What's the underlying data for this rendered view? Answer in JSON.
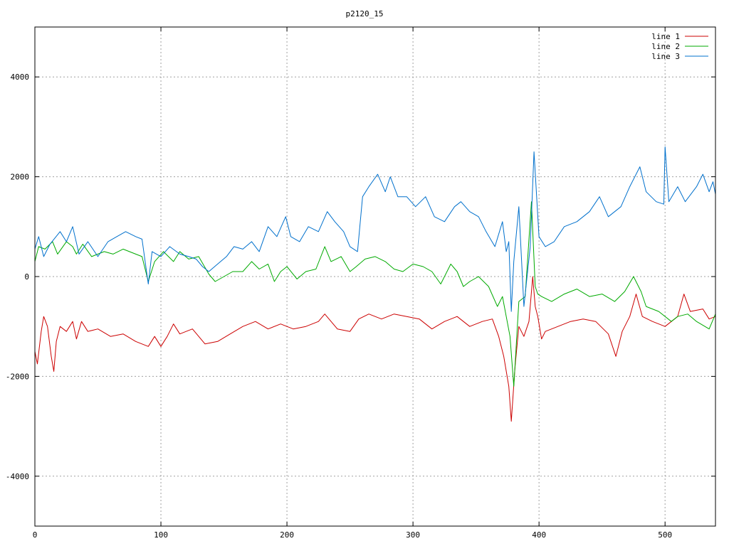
{
  "chart_data": {
    "type": "line",
    "title": "p2120_15",
    "xlabel": "",
    "ylabel": "",
    "xlim": [
      0,
      540
    ],
    "ylim": [
      -5000,
      5000
    ],
    "xticks": [
      0,
      100,
      200,
      300,
      400,
      500
    ],
    "yticks": [
      -4000,
      -2000,
      0,
      2000,
      4000
    ],
    "ytick_labels": [
      "-4000",
      "-2000",
      "0",
      "2000",
      "4000"
    ],
    "grid": true,
    "legend_position": "top-right",
    "series": [
      {
        "name": "line 1",
        "color": "#cc0000",
        "points": [
          [
            0,
            -1500
          ],
          [
            2,
            -1750
          ],
          [
            5,
            -1100
          ],
          [
            7,
            -800
          ],
          [
            10,
            -1000
          ],
          [
            13,
            -1600
          ],
          [
            15,
            -1900
          ],
          [
            17,
            -1300
          ],
          [
            20,
            -1000
          ],
          [
            25,
            -1100
          ],
          [
            30,
            -900
          ],
          [
            33,
            -1250
          ],
          [
            37,
            -900
          ],
          [
            42,
            -1100
          ],
          [
            50,
            -1050
          ],
          [
            60,
            -1200
          ],
          [
            70,
            -1150
          ],
          [
            80,
            -1300
          ],
          [
            90,
            -1400
          ],
          [
            95,
            -1200
          ],
          [
            100,
            -1400
          ],
          [
            105,
            -1200
          ],
          [
            110,
            -950
          ],
          [
            115,
            -1150
          ],
          [
            125,
            -1050
          ],
          [
            135,
            -1350
          ],
          [
            145,
            -1300
          ],
          [
            155,
            -1150
          ],
          [
            165,
            -1000
          ],
          [
            175,
            -900
          ],
          [
            185,
            -1050
          ],
          [
            195,
            -950
          ],
          [
            205,
            -1050
          ],
          [
            215,
            -1000
          ],
          [
            225,
            -900
          ],
          [
            230,
            -750
          ],
          [
            240,
            -1050
          ],
          [
            250,
            -1100
          ],
          [
            257,
            -850
          ],
          [
            265,
            -750
          ],
          [
            275,
            -850
          ],
          [
            285,
            -750
          ],
          [
            295,
            -800
          ],
          [
            305,
            -850
          ],
          [
            315,
            -1050
          ],
          [
            325,
            -900
          ],
          [
            335,
            -800
          ],
          [
            345,
            -1000
          ],
          [
            355,
            -900
          ],
          [
            363,
            -850
          ],
          [
            368,
            -1200
          ],
          [
            372,
            -1600
          ],
          [
            376,
            -2200
          ],
          [
            378,
            -2900
          ],
          [
            381,
            -1800
          ],
          [
            384,
            -1000
          ],
          [
            388,
            -1200
          ],
          [
            392,
            -900
          ],
          [
            395,
            0
          ],
          [
            397,
            -600
          ],
          [
            399,
            -800
          ],
          [
            402,
            -1250
          ],
          [
            405,
            -1100
          ],
          [
            415,
            -1000
          ],
          [
            425,
            -900
          ],
          [
            435,
            -850
          ],
          [
            445,
            -900
          ],
          [
            455,
            -1150
          ],
          [
            461,
            -1600
          ],
          [
            466,
            -1100
          ],
          [
            472,
            -800
          ],
          [
            477,
            -350
          ],
          [
            482,
            -800
          ],
          [
            490,
            -900
          ],
          [
            500,
            -1000
          ],
          [
            510,
            -800
          ],
          [
            515,
            -350
          ],
          [
            520,
            -700
          ],
          [
            530,
            -650
          ],
          [
            535,
            -850
          ],
          [
            540,
            -800
          ]
        ]
      },
      {
        "name": "line 2",
        "color": "#00aa00",
        "points": [
          [
            0,
            300
          ],
          [
            3,
            600
          ],
          [
            8,
            550
          ],
          [
            14,
            700
          ],
          [
            18,
            450
          ],
          [
            25,
            700
          ],
          [
            30,
            600
          ],
          [
            33,
            450
          ],
          [
            38,
            650
          ],
          [
            45,
            400
          ],
          [
            55,
            500
          ],
          [
            62,
            450
          ],
          [
            70,
            550
          ],
          [
            80,
            450
          ],
          [
            85,
            400
          ],
          [
            90,
            -100
          ],
          [
            95,
            300
          ],
          [
            102,
            500
          ],
          [
            110,
            300
          ],
          [
            115,
            500
          ],
          [
            122,
            350
          ],
          [
            130,
            400
          ],
          [
            138,
            50
          ],
          [
            143,
            -100
          ],
          [
            150,
            0
          ],
          [
            157,
            100
          ],
          [
            165,
            100
          ],
          [
            172,
            300
          ],
          [
            178,
            150
          ],
          [
            185,
            250
          ],
          [
            190,
            -100
          ],
          [
            195,
            100
          ],
          [
            200,
            200
          ],
          [
            208,
            -50
          ],
          [
            215,
            100
          ],
          [
            223,
            150
          ],
          [
            230,
            600
          ],
          [
            235,
            300
          ],
          [
            243,
            400
          ],
          [
            250,
            100
          ],
          [
            255,
            200
          ],
          [
            262,
            350
          ],
          [
            270,
            400
          ],
          [
            278,
            300
          ],
          [
            285,
            150
          ],
          [
            292,
            100
          ],
          [
            300,
            250
          ],
          [
            308,
            200
          ],
          [
            315,
            100
          ],
          [
            322,
            -150
          ],
          [
            330,
            250
          ],
          [
            335,
            100
          ],
          [
            340,
            -200
          ],
          [
            345,
            -100
          ],
          [
            352,
            0
          ],
          [
            360,
            -200
          ],
          [
            367,
            -600
          ],
          [
            371,
            -400
          ],
          [
            374,
            -800
          ],
          [
            377,
            -1200
          ],
          [
            380,
            -2200
          ],
          [
            384,
            -500
          ],
          [
            389,
            -400
          ],
          [
            394,
            1500
          ],
          [
            397,
            -200
          ],
          [
            399,
            -350
          ],
          [
            402,
            -400
          ],
          [
            410,
            -500
          ],
          [
            420,
            -350
          ],
          [
            430,
            -250
          ],
          [
            440,
            -400
          ],
          [
            450,
            -350
          ],
          [
            460,
            -500
          ],
          [
            468,
            -300
          ],
          [
            475,
            0
          ],
          [
            481,
            -300
          ],
          [
            485,
            -600
          ],
          [
            495,
            -700
          ],
          [
            505,
            -900
          ],
          [
            510,
            -800
          ],
          [
            518,
            -750
          ],
          [
            525,
            -900
          ],
          [
            535,
            -1050
          ],
          [
            540,
            -750
          ]
        ]
      },
      {
        "name": "line 3",
        "color": "#0070cc",
        "points": [
          [
            0,
            550
          ],
          [
            3,
            800
          ],
          [
            7,
            400
          ],
          [
            12,
            650
          ],
          [
            20,
            900
          ],
          [
            25,
            700
          ],
          [
            30,
            1000
          ],
          [
            35,
            450
          ],
          [
            42,
            700
          ],
          [
            50,
            400
          ],
          [
            58,
            700
          ],
          [
            65,
            800
          ],
          [
            72,
            900
          ],
          [
            80,
            800
          ],
          [
            85,
            750
          ],
          [
            90,
            -150
          ],
          [
            93,
            500
          ],
          [
            100,
            400
          ],
          [
            107,
            600
          ],
          [
            115,
            450
          ],
          [
            122,
            400
          ],
          [
            128,
            350
          ],
          [
            133,
            200
          ],
          [
            138,
            100
          ],
          [
            145,
            250
          ],
          [
            152,
            400
          ],
          [
            158,
            600
          ],
          [
            165,
            550
          ],
          [
            172,
            700
          ],
          [
            178,
            500
          ],
          [
            185,
            1000
          ],
          [
            192,
            800
          ],
          [
            199,
            1200
          ],
          [
            203,
            800
          ],
          [
            210,
            700
          ],
          [
            217,
            1000
          ],
          [
            225,
            900
          ],
          [
            232,
            1300
          ],
          [
            238,
            1100
          ],
          [
            245,
            900
          ],
          [
            250,
            600
          ],
          [
            256,
            500
          ],
          [
            260,
            1600
          ],
          [
            265,
            1800
          ],
          [
            272,
            2050
          ],
          [
            278,
            1700
          ],
          [
            282,
            2000
          ],
          [
            288,
            1600
          ],
          [
            295,
            1600
          ],
          [
            302,
            1400
          ],
          [
            310,
            1600
          ],
          [
            317,
            1200
          ],
          [
            325,
            1100
          ],
          [
            333,
            1400
          ],
          [
            338,
            1500
          ],
          [
            345,
            1300
          ],
          [
            352,
            1200
          ],
          [
            358,
            900
          ],
          [
            365,
            600
          ],
          [
            371,
            1100
          ],
          [
            374,
            500
          ],
          [
            376,
            700
          ],
          [
            378,
            -700
          ],
          [
            380,
            300
          ],
          [
            384,
            1400
          ],
          [
            388,
            -600
          ],
          [
            393,
            600
          ],
          [
            396,
            2500
          ],
          [
            400,
            800
          ],
          [
            405,
            600
          ],
          [
            412,
            700
          ],
          [
            420,
            1000
          ],
          [
            430,
            1100
          ],
          [
            440,
            1300
          ],
          [
            448,
            1600
          ],
          [
            455,
            1200
          ],
          [
            465,
            1400
          ],
          [
            472,
            1800
          ],
          [
            480,
            2200
          ],
          [
            485,
            1700
          ],
          [
            493,
            1500
          ],
          [
            499,
            1450
          ],
          [
            500,
            2600
          ],
          [
            503,
            1500
          ],
          [
            510,
            1800
          ],
          [
            516,
            1500
          ],
          [
            525,
            1800
          ],
          [
            530,
            2050
          ],
          [
            535,
            1700
          ],
          [
            538,
            1900
          ],
          [
            540,
            1650
          ]
        ]
      }
    ]
  }
}
